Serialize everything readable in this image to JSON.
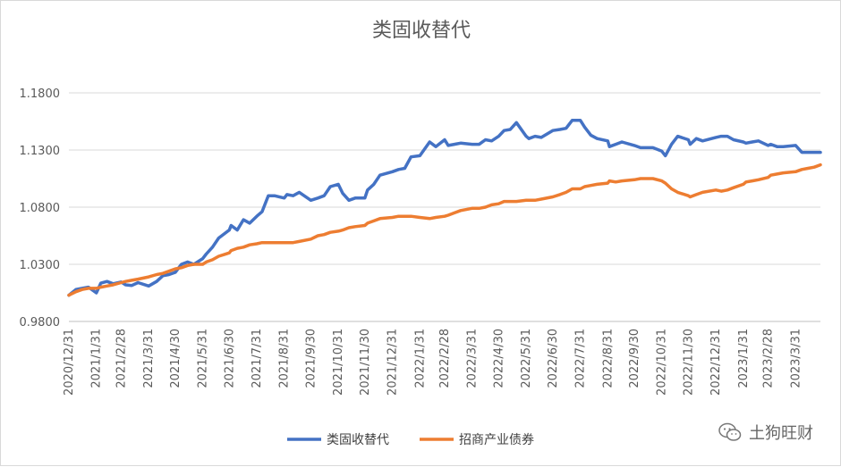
{
  "chart_data": {
    "type": "line",
    "title": "类固收替代",
    "xlabel": "",
    "ylabel": "",
    "ylim": [
      0.98,
      1.18
    ],
    "yticks": [
      "0.9800",
      "1.0300",
      "1.0800",
      "1.1300",
      "1.1800"
    ],
    "ytick_values": [
      0.98,
      1.03,
      1.08,
      1.13,
      1.18
    ],
    "grid": "horizontal",
    "legend": "bottom",
    "x_tick_labels": [
      "2020/12/31",
      "2021/1/31",
      "2021/2/28",
      "2021/3/31",
      "2021/4/30",
      "2021/5/31",
      "2021/6/30",
      "2021/7/31",
      "2021/8/31",
      "2021/9/30",
      "2021/10/31",
      "2021/11/30",
      "2021/12/31",
      "2022/1/31",
      "2022/2/28",
      "2022/3/31",
      "2022/4/30",
      "2022/5/31",
      "2022/6/30",
      "2022/7/31",
      "2022/8/31",
      "2022/9/30",
      "2022/10/31",
      "2022/11/30",
      "2022/12/31",
      "2023/1/31",
      "2023/2/28",
      "2023/3/31"
    ],
    "x": [
      "2020/12/31",
      "2021/1/8",
      "2021/1/15",
      "2021/1/22",
      "2021/1/31",
      "2021/2/5",
      "2021/2/12",
      "2021/2/19",
      "2021/2/28",
      "2021/3/5",
      "2021/3/12",
      "2021/3/19",
      "2021/3/31",
      "2021/4/9",
      "2021/4/16",
      "2021/4/23",
      "2021/4/30",
      "2021/5/7",
      "2021/5/14",
      "2021/5/21",
      "2021/5/31",
      "2021/6/4",
      "2021/6/11",
      "2021/6/18",
      "2021/6/30",
      "2021/7/2",
      "2021/7/9",
      "2021/7/16",
      "2021/7/23",
      "2021/7/31",
      "2021/8/6",
      "2021/8/13",
      "2021/8/20",
      "2021/8/31",
      "2021/9/3",
      "2021/9/10",
      "2021/9/17",
      "2021/9/30",
      "2021/10/8",
      "2021/10/15",
      "2021/10/22",
      "2021/10/31",
      "2021/11/5",
      "2021/11/12",
      "2021/11/19",
      "2021/11/30",
      "2021/12/3",
      "2021/12/10",
      "2021/12/17",
      "2021/12/31",
      "2022/1/7",
      "2022/1/14",
      "2022/1/21",
      "2022/1/31",
      "2022/2/11",
      "2022/2/18",
      "2022/2/28",
      "2022/3/4",
      "2022/3/11",
      "2022/3/18",
      "2022/3/31",
      "2022/4/8",
      "2022/4/15",
      "2022/4/22",
      "2022/4/30",
      "2022/5/6",
      "2022/5/13",
      "2022/5/20",
      "2022/5/31",
      "2022/6/3",
      "2022/6/10",
      "2022/6/17",
      "2022/6/30",
      "2022/7/8",
      "2022/7/15",
      "2022/7/22",
      "2022/7/31",
      "2022/8/5",
      "2022/8/12",
      "2022/8/19",
      "2022/8/31",
      "2022/9/2",
      "2022/9/9",
      "2022/9/16",
      "2022/9/30",
      "2022/10/7",
      "2022/10/14",
      "2022/10/21",
      "2022/10/31",
      "2022/11/4",
      "2022/11/11",
      "2022/11/18",
      "2022/11/30",
      "2022/12/2",
      "2022/12/9",
      "2022/12/16",
      "2022/12/31",
      "2023/1/6",
      "2023/1/13",
      "2023/1/20",
      "2023/1/31",
      "2023/2/3",
      "2023/2/10",
      "2023/2/17",
      "2023/2/28",
      "2023/3/3",
      "2023/3/10",
      "2023/3/17",
      "2023/3/31",
      "2023/4/7",
      "2023/4/14",
      "2023/4/21",
      "2023/4/28"
    ],
    "series": [
      {
        "name": "类固收替代",
        "color": "#4472c4",
        "values": [
          1.003,
          1.008,
          1.009,
          1.01,
          1.005,
          1.0135,
          1.015,
          1.013,
          1.0145,
          1.012,
          1.0115,
          1.014,
          1.011,
          1.015,
          1.02,
          1.021,
          1.023,
          1.03,
          1.032,
          1.03,
          1.035,
          1.039,
          1.045,
          1.053,
          1.06,
          1.064,
          1.06,
          1.069,
          1.066,
          1.072,
          1.076,
          1.09,
          1.09,
          1.088,
          1.091,
          1.09,
          1.093,
          1.086,
          1.088,
          1.09,
          1.098,
          1.1,
          1.092,
          1.086,
          1.088,
          1.088,
          1.095,
          1.1,
          1.108,
          1.111,
          1.113,
          1.114,
          1.124,
          1.125,
          1.137,
          1.133,
          1.139,
          1.134,
          1.135,
          1.136,
          1.135,
          1.135,
          1.139,
          1.138,
          1.142,
          1.147,
          1.148,
          1.154,
          1.142,
          1.14,
          1.142,
          1.141,
          1.147,
          1.148,
          1.149,
          1.156,
          1.156,
          1.15,
          1.143,
          1.14,
          1.138,
          1.133,
          1.135,
          1.137,
          1.134,
          1.132,
          1.132,
          1.132,
          1.129,
          1.125,
          1.135,
          1.142,
          1.139,
          1.135,
          1.14,
          1.138,
          1.141,
          1.142,
          1.142,
          1.139,
          1.137,
          1.136,
          1.137,
          1.138,
          1.134,
          1.135,
          1.133,
          1.133,
          1.134,
          1.128,
          1.128,
          1.128,
          1.128
        ]
      },
      {
        "name": "招商产业债券",
        "color": "#ed7d31",
        "values": [
          1.003,
          1.006,
          1.008,
          1.009,
          1.009,
          1.01,
          1.011,
          1.012,
          1.014,
          1.015,
          1.016,
          1.017,
          1.019,
          1.021,
          1.022,
          1.024,
          1.026,
          1.027,
          1.029,
          1.03,
          1.03,
          1.032,
          1.034,
          1.037,
          1.04,
          1.042,
          1.044,
          1.045,
          1.047,
          1.048,
          1.049,
          1.049,
          1.049,
          1.049,
          1.049,
          1.049,
          1.05,
          1.052,
          1.055,
          1.056,
          1.058,
          1.059,
          1.06,
          1.062,
          1.063,
          1.064,
          1.066,
          1.068,
          1.07,
          1.071,
          1.072,
          1.072,
          1.072,
          1.071,
          1.07,
          1.071,
          1.072,
          1.073,
          1.075,
          1.077,
          1.079,
          1.079,
          1.08,
          1.082,
          1.083,
          1.085,
          1.085,
          1.085,
          1.086,
          1.086,
          1.086,
          1.087,
          1.089,
          1.091,
          1.093,
          1.096,
          1.096,
          1.098,
          1.099,
          1.1,
          1.101,
          1.103,
          1.102,
          1.103,
          1.104,
          1.105,
          1.105,
          1.105,
          1.103,
          1.101,
          1.096,
          1.093,
          1.09,
          1.089,
          1.091,
          1.093,
          1.095,
          1.094,
          1.095,
          1.097,
          1.1,
          1.102,
          1.103,
          1.104,
          1.106,
          1.108,
          1.109,
          1.11,
          1.111,
          1.113,
          1.114,
          1.115,
          1.117
        ]
      }
    ]
  },
  "watermark": {
    "icon": "wechat-icon",
    "text": "土狗旺财"
  }
}
